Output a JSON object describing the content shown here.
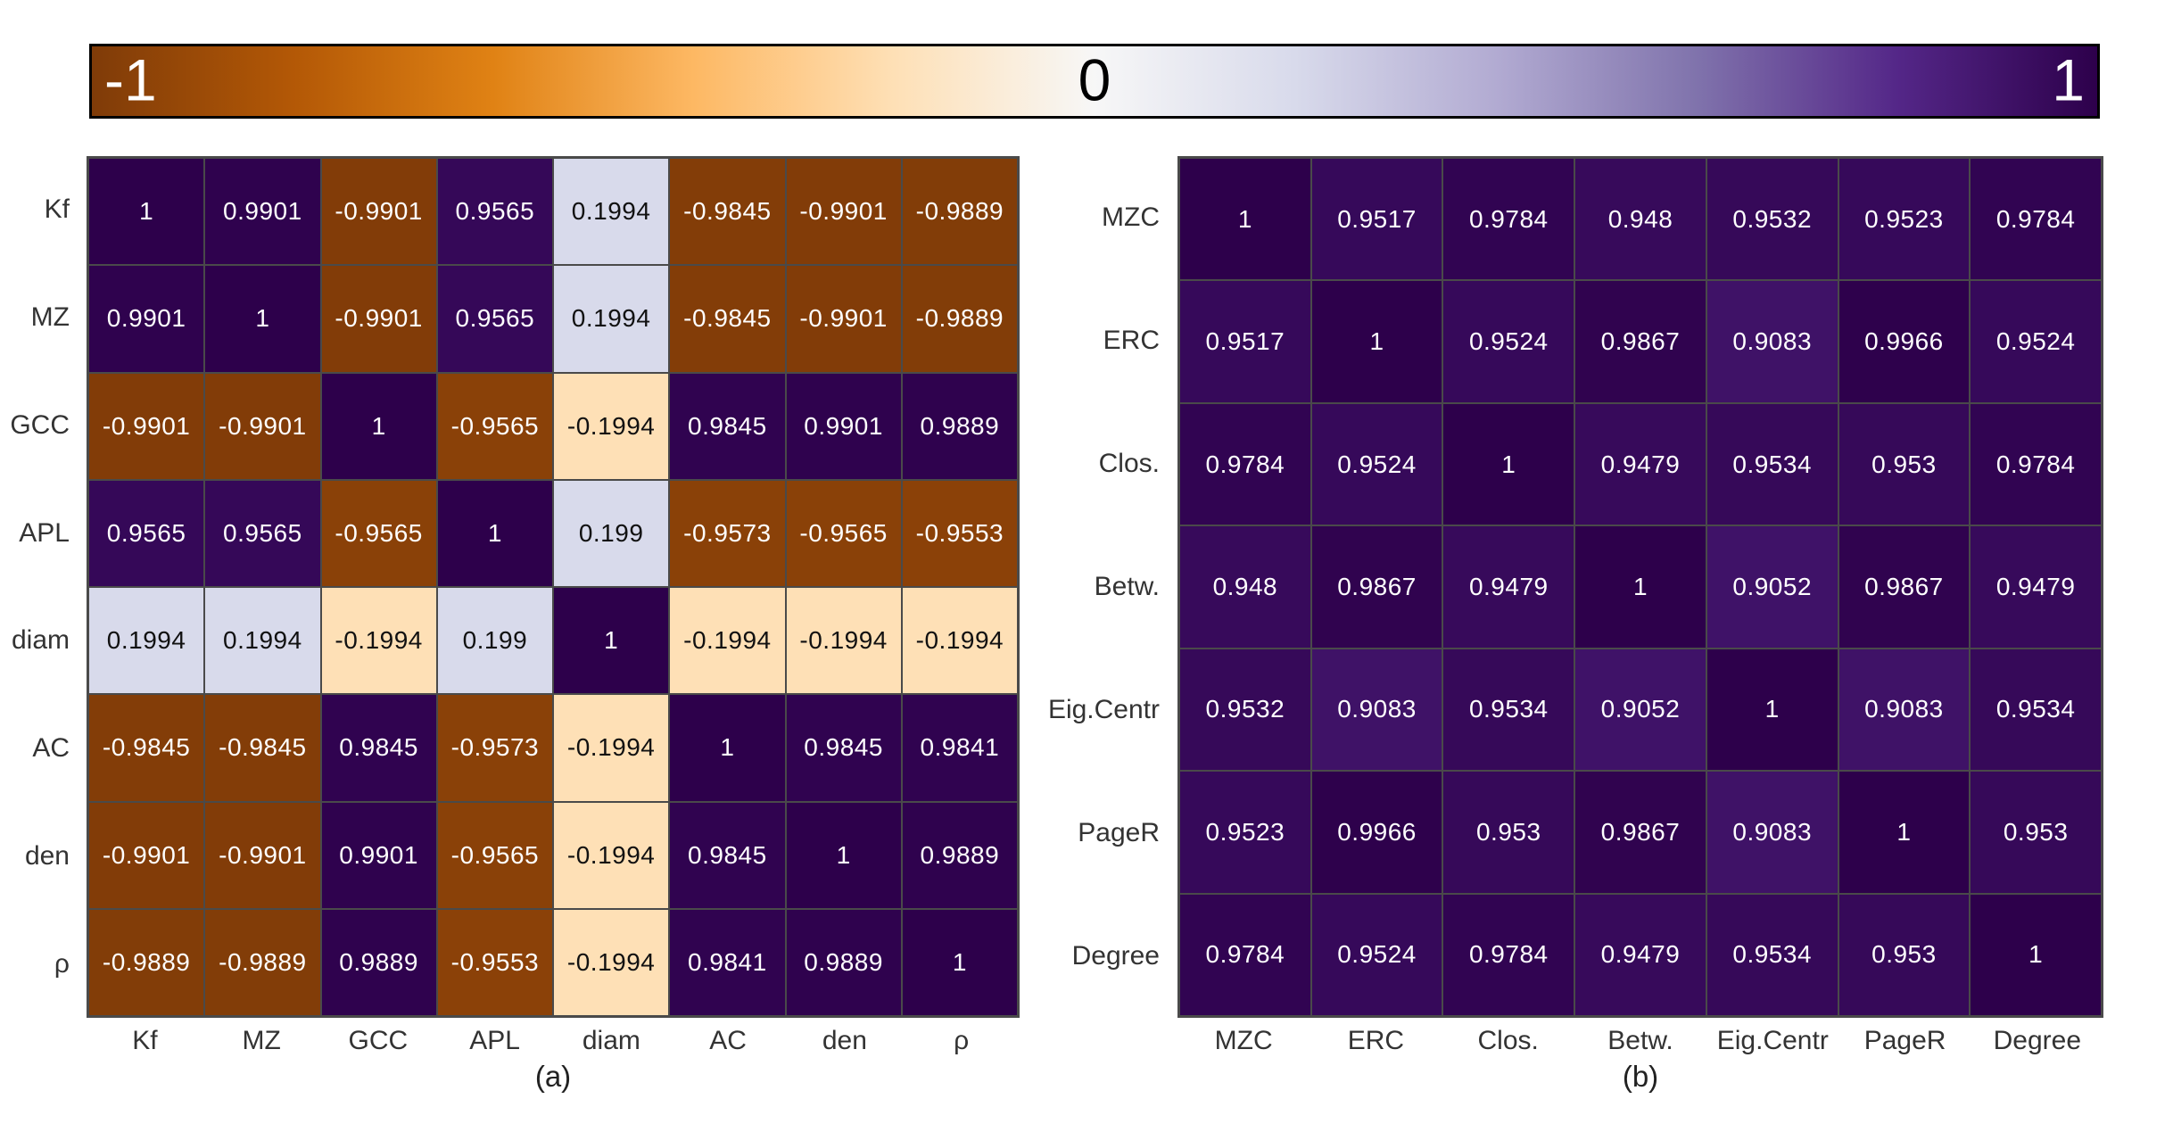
{
  "colorbar": {
    "min": -1,
    "max": 1,
    "min_label": "-1",
    "mid_label": "0",
    "max_label": "1",
    "colormap_name": "PuOr",
    "colors": [
      "#7f3b08",
      "#b35806",
      "#e08214",
      "#fdb863",
      "#fee0b6",
      "#f7f7f7",
      "#d8daeb",
      "#b2abd2",
      "#8073ac",
      "#542788",
      "#2d004b"
    ],
    "grid_line_color": "#4a4a4a"
  },
  "chart_data": [
    {
      "type": "heatmap",
      "caption": "(a)",
      "categories": [
        "Kf",
        "MZ",
        "GCC",
        "APL",
        "diam",
        "AC",
        "den",
        "ρ"
      ],
      "values": [
        [
          "1",
          "0.9901",
          "-0.9901",
          "0.9565",
          "0.1994",
          "-0.9845",
          "-0.9901",
          "-0.9889"
        ],
        [
          "0.9901",
          "1",
          "-0.9901",
          "0.9565",
          "0.1994",
          "-0.9845",
          "-0.9901",
          "-0.9889"
        ],
        [
          "-0.9901",
          "-0.9901",
          "1",
          "-0.9565",
          "-0.1994",
          "0.9845",
          "0.9901",
          "0.9889"
        ],
        [
          "0.9565",
          "0.9565",
          "-0.9565",
          "1",
          "0.199",
          "-0.9573",
          "-0.9565",
          "-0.9553"
        ],
        [
          "0.1994",
          "0.1994",
          "-0.1994",
          "0.199",
          "1",
          "-0.1994",
          "-0.1994",
          "-0.1994"
        ],
        [
          "-0.9845",
          "-0.9845",
          "0.9845",
          "-0.9573",
          "-0.1994",
          "1",
          "0.9845",
          "0.9841"
        ],
        [
          "-0.9901",
          "-0.9901",
          "0.9901",
          "-0.9565",
          "-0.1994",
          "0.9845",
          "1",
          "0.9889"
        ],
        [
          "-0.9889",
          "-0.9889",
          "0.9889",
          "-0.9553",
          "-0.1994",
          "0.9841",
          "0.9889",
          "1"
        ]
      ],
      "vmin": -1,
      "vmax": 1
    },
    {
      "type": "heatmap",
      "caption": "(b)",
      "categories": [
        "MZC",
        "ERC",
        "Clos.",
        "Betw.",
        "Eig.Centr",
        "PageR",
        "Degree"
      ],
      "values": [
        [
          "1",
          "0.9517",
          "0.9784",
          "0.948",
          "0.9532",
          "0.9523",
          "0.9784"
        ],
        [
          "0.9517",
          "1",
          "0.9524",
          "0.9867",
          "0.9083",
          "0.9966",
          "0.9524"
        ],
        [
          "0.9784",
          "0.9524",
          "1",
          "0.9479",
          "0.9534",
          "0.953",
          "0.9784"
        ],
        [
          "0.948",
          "0.9867",
          "0.9479",
          "1",
          "0.9052",
          "0.9867",
          "0.9479"
        ],
        [
          "0.9532",
          "0.9083",
          "0.9534",
          "0.9052",
          "1",
          "0.9083",
          "0.9534"
        ],
        [
          "0.9523",
          "0.9966",
          "0.953",
          "0.9867",
          "0.9083",
          "1",
          "0.953"
        ],
        [
          "0.9784",
          "0.9524",
          "0.9784",
          "0.9479",
          "0.9534",
          "0.953",
          "1"
        ]
      ],
      "vmin": -1,
      "vmax": 1
    }
  ]
}
